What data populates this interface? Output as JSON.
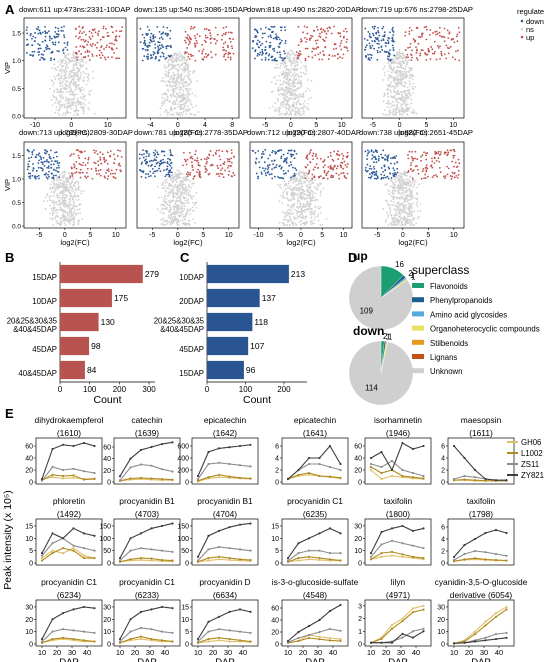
{
  "panel_labels": [
    "A",
    "B",
    "C",
    "D",
    "E"
  ],
  "colors": {
    "down": "#2e5a96",
    "up": "#c0504d",
    "ns": "#d2d2d2",
    "bar_b": "#b85450",
    "bar_c": "#2a5593",
    "GH06": "#e0be6a",
    "L1002": "#b08a1e",
    "ZS11": "#8c8c8c",
    "ZY821": "#3d3d3d",
    "flavonoids": "#1a9e72",
    "phenylpropanoids": "#1b5e8c",
    "amino": "#55aadd",
    "organo": "#e8e060",
    "stilbenoids": "#e69a20",
    "lignans": "#c45218",
    "unknown": "#cfcfcf",
    "red_title": "#d0021b"
  },
  "volcano": {
    "xlabel": "log2(FC)",
    "ylabel": "VIP",
    "legend_title": "regulate",
    "legend_items": [
      "down",
      "ns",
      "up"
    ],
    "plots": [
      {
        "title": "down:611 up:473ns:2331-10DAP",
        "ticks": [
          "-10",
          "0",
          "10"
        ],
        "xlim": [
          -13,
          15
        ]
      },
      {
        "title": "down:135 up:540 ns:3086-15DAP",
        "ticks": [
          "-4",
          "0",
          "4",
          "8"
        ],
        "xlim": [
          -6,
          9
        ]
      },
      {
        "title": "down:818 up:490 ns:2820-20DAP",
        "ticks": [
          "-5",
          "0",
          "5",
          "10"
        ],
        "xlim": [
          -8,
          12
        ]
      },
      {
        "title": "down:719 up:676 ns:2798-25DAP",
        "ticks": [
          "-5",
          "0",
          "5",
          "10"
        ],
        "xlim": [
          -7,
          12
        ]
      },
      {
        "title": "down:713 up:789 ns:2809-30DAP",
        "ticks": [
          "-5",
          "0",
          "5",
          "10"
        ],
        "xlim": [
          -8,
          12
        ]
      },
      {
        "title": "down:781 up:785 ns:2778-35DAP",
        "ticks": [
          "-5",
          "0",
          "5",
          "10"
        ],
        "xlim": [
          -8,
          12
        ]
      },
      {
        "title": "down:712 up:790 ns:2807-40DAP",
        "ticks": [
          "-10",
          "-5",
          "0",
          "5",
          "10"
        ],
        "xlim": [
          -12,
          12
        ]
      },
      {
        "title": "down:738 up:882 ns:2651-45DAP",
        "ticks": [
          "-5",
          "0",
          "5",
          "10"
        ],
        "xlim": [
          -8,
          12
        ]
      }
    ],
    "yticks": [
      "0.0",
      "0.5",
      "1.0",
      "1.5"
    ]
  },
  "chart_data": [
    {
      "type": "bar",
      "panel": "B",
      "orientation": "horizontal",
      "categories": [
        "15DAP",
        "10DAP",
        "20&25&30&35\n&40&45DAP",
        "45DAP",
        "40&45DAP"
      ],
      "values": [
        279,
        175,
        130,
        98,
        84
      ],
      "xlabel": "Count",
      "xticks": [
        "0",
        "100",
        "200",
        "300"
      ],
      "xlim": [
        0,
        320
      ]
    },
    {
      "type": "bar",
      "panel": "C",
      "orientation": "horizontal",
      "categories": [
        "10DAP",
        "20DAP",
        "20&25&30&35\n&40&45DAP",
        "45DAP",
        "15DAP"
      ],
      "values": [
        213,
        137,
        118,
        107,
        96
      ],
      "xlabel": "Count",
      "xticks": [
        "0",
        "100",
        "200"
      ],
      "xlim": [
        0,
        260
      ]
    },
    {
      "type": "pie",
      "panel": "D",
      "title": "superclass",
      "pies": [
        {
          "label": "up",
          "slices": [
            16,
            2,
            1,
            1,
            109
          ],
          "slice_labels": [
            "16",
            "2",
            "1",
            "1",
            "109"
          ]
        },
        {
          "label": "down",
          "slices": [
            2,
            1,
            1,
            114
          ],
          "slice_labels": [
            "2",
            "1",
            "1",
            "114"
          ]
        }
      ],
      "legend": [
        "Flavonoids",
        "Phenylpropanoids",
        "Amino acid glycosides",
        "Organoheterocyclic compounds",
        "Stilbenoids",
        "Lignans",
        "Unknown"
      ]
    },
    {
      "type": "line",
      "panel": "E",
      "xlabel": "DAP",
      "ylabel": "Peak intensity (x 10⁵)",
      "xticks": [
        "10",
        "20",
        "30",
        "40"
      ],
      "legend": [
        "GH06",
        "L1002",
        "ZS11",
        "ZY821"
      ],
      "plots": [
        {
          "name": "dihydrokaempferol",
          "id": "(1610)",
          "red": true,
          "yticks": [
            "0",
            "20",
            "40",
            "60"
          ],
          "ymax": 70,
          "s": [
            [
              5,
              8,
              6,
              7,
              5,
              6
            ],
            [
              3,
              12,
              10,
              11,
              4,
              5
            ],
            [
              2,
              25,
              20,
              22,
              18,
              15
            ],
            [
              5,
              55,
              62,
              60,
              65,
              60
            ]
          ]
        },
        {
          "name": "catechin",
          "id": "(1639)",
          "red": true,
          "yticks": [
            "0",
            "20",
            "40",
            "60"
          ],
          "ymax": 72,
          "s": [
            [
              2,
              4,
              5,
              4,
              3,
              3
            ],
            [
              2,
              6,
              7,
              6,
              5,
              4
            ],
            [
              3,
              25,
              30,
              28,
              22,
              18
            ],
            [
              10,
              40,
              55,
              60,
              65,
              68
            ]
          ]
        },
        {
          "name": "epicatechin",
          "id": "(1642)",
          "red": true,
          "yticks": [
            "0",
            "200",
            "400",
            "600"
          ],
          "ymax": 700,
          "s": [
            [
              10,
              60,
              80,
              70,
              60,
              50
            ],
            [
              20,
              80,
              120,
              90,
              70,
              60
            ],
            [
              50,
              300,
              320,
              300,
              280,
              260
            ],
            [
              100,
              500,
              560,
              580,
              600,
              620
            ]
          ]
        },
        {
          "name": "epicatechin",
          "id": "(1641)",
          "red": false,
          "yticks": [
            "0",
            "2",
            "4",
            "6"
          ],
          "ymax": 7,
          "s": [
            [
              0.5,
              1,
              1.2,
              1,
              0.8,
              0.6
            ],
            [
              0.5,
              1.2,
              1.5,
              1,
              0.9,
              0.7
            ],
            [
              0.5,
              2,
              3,
              3,
              2.5,
              2
            ],
            [
              0.5,
              2,
              4,
              4,
              6,
              3
            ]
          ]
        },
        {
          "name": "isorhamnetin",
          "id": "(1946)",
          "red": false,
          "yticks": [
            "0",
            "20",
            "40",
            "60"
          ],
          "ymax": 70,
          "s": [
            [
              20,
              5,
              10,
              8,
              6,
              5
            ],
            [
              25,
              15,
              20,
              10,
              8,
              6
            ],
            [
              30,
              25,
              35,
              20,
              15,
              10
            ],
            [
              40,
              50,
              20,
              65,
              55,
              60
            ]
          ]
        },
        {
          "name": "maesopsin",
          "id": "(1611)",
          "red": false,
          "yticks": [
            "0",
            "2",
            "4",
            "6"
          ],
          "ymax": 7,
          "s": [
            [
              0.3,
              0.3,
              0.2,
              0.2,
              0.2,
              0.2
            ],
            [
              0.3,
              0.4,
              0.3,
              0.2,
              0.2,
              0.2
            ],
            [
              0.5,
              1,
              0.8,
              0.5,
              0.3,
              0.3
            ],
            [
              6,
              4,
              2,
              0.5,
              0.3,
              0.3
            ]
          ]
        },
        {
          "name": "phloretin",
          "id": "(1492)",
          "red": false,
          "yticks": [
            "0",
            "5",
            "10",
            "15"
          ],
          "ymax": 17,
          "s": [
            [
              2,
              5,
              4,
              6,
              3,
              2
            ],
            [
              1,
              4,
              6,
              5,
              2,
              2
            ],
            [
              3,
              8,
              10,
              7,
              6,
              5
            ],
            [
              4,
              12,
              10,
              14,
              12,
              11
            ]
          ]
        },
        {
          "name": "procyanidin B1",
          "id": "(4703)",
          "red": true,
          "yticks": [
            "0",
            "50",
            "100",
            "150"
          ],
          "ymax": 170,
          "s": [
            [
              5,
              10,
              12,
              10,
              8,
              6
            ],
            [
              5,
              15,
              20,
              18,
              12,
              10
            ],
            [
              10,
              50,
              60,
              55,
              50,
              45
            ],
            [
              20,
              100,
              120,
              140,
              150,
              160
            ]
          ]
        },
        {
          "name": "procyanidin B1",
          "id": "(4704)",
          "red": true,
          "yticks": [
            "0",
            "50",
            "100",
            "150"
          ],
          "ymax": 170,
          "s": [
            [
              5,
              10,
              15,
              12,
              10,
              8
            ],
            [
              5,
              20,
              25,
              20,
              15,
              12
            ],
            [
              10,
              55,
              65,
              60,
              55,
              50
            ],
            [
              25,
              110,
              130,
              145,
              155,
              160
            ]
          ]
        },
        {
          "name": "procyanidin C1",
          "id": "(6235)",
          "red": true,
          "yticks": [
            "0",
            "5",
            "10",
            "15"
          ],
          "ymax": 17,
          "s": [
            [
              0.5,
              1,
              1.5,
              1.2,
              1,
              1
            ],
            [
              0.5,
              2,
              2.5,
              2,
              1.5,
              1
            ],
            [
              1,
              4,
              5,
              5,
              4,
              4
            ],
            [
              2,
              8,
              10,
              12,
              14,
              12
            ]
          ]
        },
        {
          "name": "taxifolin",
          "id": "(1800)",
          "red": false,
          "yticks": [
            "0",
            "10",
            "20",
            "30"
          ],
          "ymax": 34,
          "s": [
            [
              3,
              5,
              6,
              5,
              4,
              3
            ],
            [
              3,
              8,
              9,
              7,
              5,
              4
            ],
            [
              5,
              15,
              18,
              16,
              14,
              12
            ],
            [
              8,
              25,
              28,
              30,
              26,
              28
            ]
          ]
        },
        {
          "name": "taxifolin",
          "id": "(1798)",
          "red": false,
          "yticks": [
            "0",
            "2",
            "4",
            "6"
          ],
          "ymax": 7,
          "s": [
            [
              0.3,
              0.5,
              0.6,
              0.5,
              0.4,
              0.4
            ],
            [
              0.3,
              0.6,
              0.8,
              0.6,
              0.5,
              0.4
            ],
            [
              0.5,
              1.5,
              2,
              1.8,
              1.5,
              1.2
            ],
            [
              1,
              3,
              4,
              5,
              5.5,
              5
            ]
          ]
        },
        {
          "name": "procyanidin C1",
          "id": "(6234)",
          "red": true,
          "yticks": [
            "0",
            "10",
            "20",
            "30"
          ],
          "ymax": 34,
          "s": [
            [
              1,
              3,
              4,
              3,
              2,
              2
            ],
            [
              1,
              4,
              5,
              4,
              3,
              2
            ],
            [
              2,
              10,
              12,
              11,
              10,
              9
            ],
            [
              4,
              20,
              25,
              28,
              30,
              29
            ]
          ]
        },
        {
          "name": "procyanidin C1",
          "id": "(6233)",
          "red": true,
          "yticks": [
            "0",
            "10",
            "20",
            "30"
          ],
          "ymax": 34,
          "s": [
            [
              1,
              3,
              4,
              3,
              2,
              2
            ],
            [
              1,
              4,
              6,
              4,
              3,
              2
            ],
            [
              2,
              10,
              13,
              12,
              10,
              9
            ],
            [
              4,
              20,
              26,
              28,
              30,
              29
            ]
          ]
        },
        {
          "name": "procyanidin D",
          "id": "(6634)",
          "red": true,
          "yticks": [
            "0",
            "5",
            "10",
            "15"
          ],
          "ymax": 17,
          "s": [
            [
              0.5,
              1,
              1.5,
              1,
              1,
              0.8
            ],
            [
              0.5,
              2,
              2.5,
              2,
              1.5,
              1
            ],
            [
              1,
              5,
              6,
              5.5,
              5,
              4.5
            ],
            [
              2,
              9,
              11,
              13,
              14,
              13
            ]
          ]
        },
        {
          "name": "is-3-o-glucoside-sulfate",
          "id": "(4548)",
          "red": false,
          "yticks": [
            "0",
            "20",
            "40",
            "60"
          ],
          "ymax": 70,
          "s": [
            [
              2,
              5,
              15,
              12,
              10,
              8
            ],
            [
              2,
              5,
              10,
              8,
              6,
              5
            ],
            [
              3,
              10,
              15,
              20,
              25,
              22
            ],
            [
              5,
              20,
              30,
              40,
              55,
              65
            ]
          ]
        },
        {
          "name": "lilyn",
          "id": "(4971)",
          "red": false,
          "yticks": [
            "0",
            "1",
            "2",
            "3"
          ],
          "ymax": 3.3,
          "s": [
            [
              0.1,
              0.5,
              1.5,
              2,
              2.8,
              3
            ],
            [
              0.1,
              0.4,
              1.2,
              1.8,
              2.5,
              2.7
            ],
            [
              0.1,
              0.1,
              0.2,
              0.5,
              1,
              1.2
            ],
            [
              0.1,
              0.1,
              0.1,
              0.8,
              0.5,
              1
            ]
          ]
        },
        {
          "name": "cyanidin-3,5-O-glucoside",
          "name2": "derivative",
          "id": "(6054)",
          "red": false,
          "yticks": [
            "0",
            "10",
            "20",
            "30"
          ],
          "ymax": 34,
          "s": [
            [
              0.5,
              3,
              10,
              18,
              25,
              30
            ],
            [
              0.5,
              2,
              8,
              15,
              22,
              28
            ],
            [
              0.5,
              1,
              3,
              5,
              8,
              9
            ],
            [
              0.5,
              1,
              2,
              3,
              4,
              5
            ]
          ]
        }
      ]
    }
  ]
}
